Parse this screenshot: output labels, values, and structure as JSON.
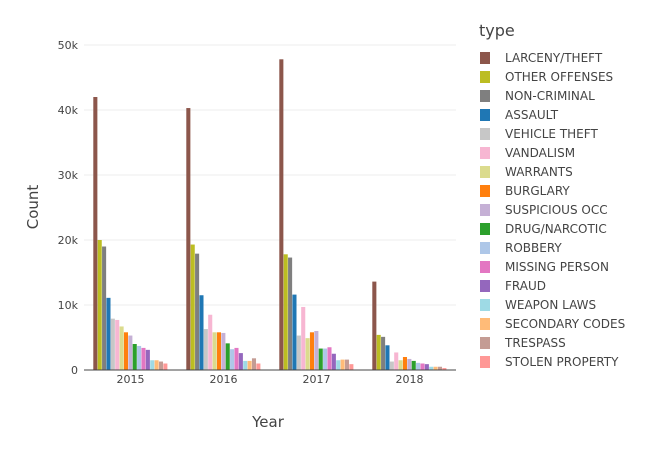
{
  "chart_data": {
    "type": "bar",
    "xlabel": "Year",
    "ylabel": "Count",
    "categories": [
      "2015",
      "2016",
      "2017",
      "2018"
    ],
    "ylim": [
      0,
      50000
    ],
    "yticks": [
      0,
      10000,
      20000,
      30000,
      40000,
      50000
    ],
    "ytick_labels": [
      "0",
      "10k",
      "20k",
      "30k",
      "40k",
      "50k"
    ],
    "grid": true,
    "legend": {
      "title": "type",
      "placement": "right"
    },
    "series": [
      {
        "name": "LARCENY/THEFT",
        "color": "#8c564b",
        "values": [
          42000,
          40300,
          47800,
          13600
        ]
      },
      {
        "name": "OTHER OFFENSES",
        "color": "#bcbd22",
        "values": [
          20000,
          19300,
          17800,
          5400
        ]
      },
      {
        "name": "NON-CRIMINAL",
        "color": "#7f7f7f",
        "values": [
          19000,
          17900,
          17300,
          5100
        ]
      },
      {
        "name": "ASSAULT",
        "color": "#1f77b4",
        "values": [
          11100,
          11500,
          11600,
          3800
        ]
      },
      {
        "name": "VEHICLE THEFT",
        "color": "#c7c7c7",
        "values": [
          7900,
          6300,
          5300,
          1300
        ]
      },
      {
        "name": "VANDALISM",
        "color": "#f7b6d2",
        "values": [
          7700,
          8500,
          9700,
          2700
        ]
      },
      {
        "name": "WARRANTS",
        "color": "#dbdb8d",
        "values": [
          6700,
          5800,
          4900,
          1500
        ]
      },
      {
        "name": "BURGLARY",
        "color": "#ff7f0e",
        "values": [
          5800,
          5800,
          5800,
          2000
        ]
      },
      {
        "name": "SUSPICIOUS OCC",
        "color": "#c5b0d5",
        "values": [
          5300,
          5700,
          6000,
          1700
        ]
      },
      {
        "name": "DRUG/NARCOTIC",
        "color": "#2ca02c",
        "values": [
          4000,
          4100,
          3300,
          1400
        ]
      },
      {
        "name": "ROBBERY",
        "color": "#aec7e8",
        "values": [
          3700,
          3200,
          3300,
          1100
        ]
      },
      {
        "name": "MISSING PERSON",
        "color": "#e377c2",
        "values": [
          3400,
          3400,
          3500,
          1000
        ]
      },
      {
        "name": "FRAUD",
        "color": "#9467bd",
        "values": [
          3100,
          2600,
          2500,
          900
        ]
      },
      {
        "name": "WEAPON LAWS",
        "color": "#9edae5",
        "values": [
          1500,
          1400,
          1500,
          500
        ]
      },
      {
        "name": "SECONDARY CODES",
        "color": "#ffbb78",
        "values": [
          1500,
          1400,
          1600,
          500
        ]
      },
      {
        "name": "TRESPASS",
        "color": "#c49c94",
        "values": [
          1300,
          1800,
          1600,
          500
        ]
      },
      {
        "name": "STOLEN PROPERTY",
        "color": "#ff9896",
        "values": [
          1000,
          1000,
          900,
          300
        ]
      }
    ]
  }
}
